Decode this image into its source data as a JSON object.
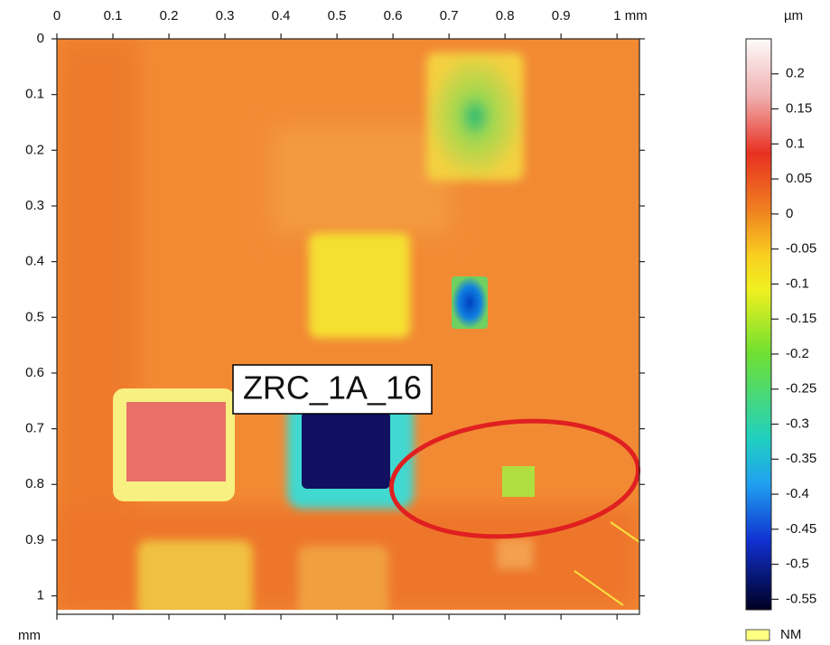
{
  "chart_data": {
    "type": "heightmap",
    "annotation": "ZRC_1A_16",
    "y_unit": "mm",
    "color_unit": "µm",
    "xlim": [
      0,
      1.04
    ],
    "ylim": [
      0,
      1.025
    ],
    "xticks": [
      0,
      0.1,
      0.2,
      0.3,
      0.4,
      0.5,
      0.6,
      0.7,
      0.8,
      0.9,
      {
        "value": 1,
        "label": "1 mm"
      }
    ],
    "yticks": [
      0,
      0.1,
      0.2,
      0.3,
      0.4,
      0.5,
      0.6,
      0.7,
      0.8,
      0.9,
      1
    ],
    "colorbar": {
      "lim": [
        -0.565,
        0.25
      ],
      "ticks": [
        0.2,
        0.15,
        0.1,
        0.05,
        0,
        -0.05,
        -0.1,
        -0.15,
        -0.2,
        -0.25,
        -0.3,
        -0.35,
        -0.4,
        -0.45,
        -0.5,
        -0.55
      ]
    },
    "legend": [
      {
        "name": "NM",
        "color": "#ffff80"
      }
    ]
  }
}
